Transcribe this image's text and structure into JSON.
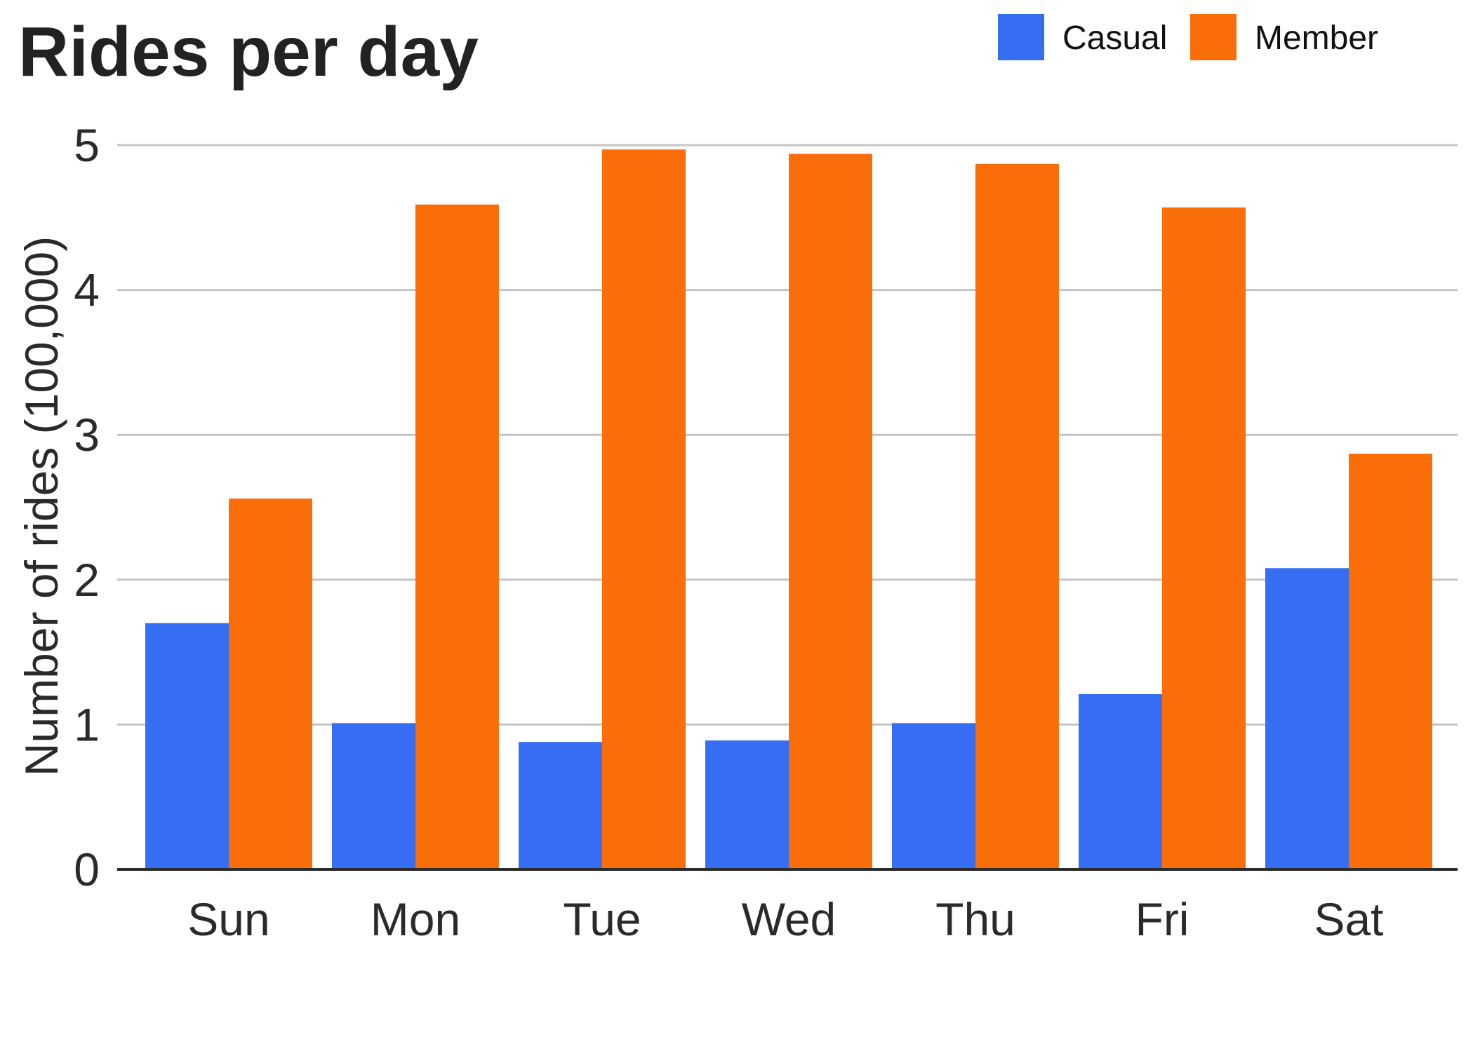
{
  "chart_data": {
    "type": "bar",
    "title": "Rides per day",
    "xlabel": "",
    "ylabel": "Number of rides (100,000)",
    "categories": [
      "Sun",
      "Mon",
      "Tue",
      "Wed",
      "Thu",
      "Fri",
      "Sat"
    ],
    "series": [
      {
        "name": "Casual",
        "color": "#366ef3",
        "values": [
          1.7,
          1.01,
          0.88,
          0.89,
          1.01,
          1.21,
          2.08
        ]
      },
      {
        "name": "Member",
        "color": "#fa6e0a",
        "values": [
          2.56,
          4.59,
          4.97,
          4.94,
          4.87,
          4.57,
          2.87
        ]
      }
    ],
    "ylim": [
      0,
      5
    ],
    "yticks": [
      "0",
      "1",
      "2",
      "3",
      "4",
      "5"
    ],
    "grid": true,
    "legend_position": "top-right"
  }
}
